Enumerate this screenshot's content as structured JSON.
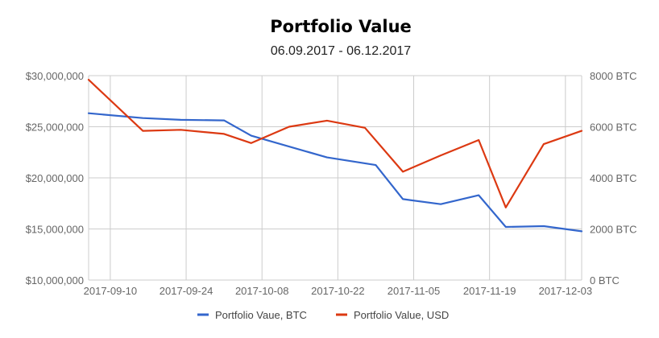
{
  "chart_data": {
    "type": "line",
    "title": "Portfolio Value",
    "subtitle": "06.09.2017 - 06.12.2017",
    "x_start": "2017-09-06",
    "x_end": "2017-12-06",
    "x_ticks": [
      "2017-09-10",
      "2017-09-24",
      "2017-10-08",
      "2017-10-22",
      "2017-11-05",
      "2017-11-19",
      "2017-12-03"
    ],
    "y_left": {
      "range": [
        10000000,
        30000000
      ],
      "ticks": [
        30000000,
        25000000,
        20000000,
        15000000,
        10000000
      ],
      "tick_labels": [
        "$30,000,000",
        "$25,000,000",
        "$20,000,000",
        "$15,000,000",
        "$10,000,000"
      ]
    },
    "y_right": {
      "range": [
        0,
        8000
      ],
      "ticks": [
        8000,
        6000,
        4000,
        2000,
        0
      ],
      "tick_labels": [
        "8000 BTC",
        "6000 BTC",
        "4000 BTC",
        "2000 BTC",
        "0 BTC"
      ]
    },
    "grid": true,
    "legend_position": "bottom",
    "series": [
      {
        "name": "Portfolio Vaue, BTC",
        "axis": "right",
        "color": "#3366cc",
        "points": [
          {
            "x": "2017-09-06",
            "y": 6530
          },
          {
            "x": "2017-09-16",
            "y": 6340
          },
          {
            "x": "2017-09-23",
            "y": 6270
          },
          {
            "x": "2017-10-01",
            "y": 6250
          },
          {
            "x": "2017-10-06",
            "y": 5650
          },
          {
            "x": "2017-10-20",
            "y": 4800
          },
          {
            "x": "2017-10-29",
            "y": 4500
          },
          {
            "x": "2017-11-03",
            "y": 3170
          },
          {
            "x": "2017-11-10",
            "y": 2970
          },
          {
            "x": "2017-11-17",
            "y": 3320
          },
          {
            "x": "2017-11-22",
            "y": 2080
          },
          {
            "x": "2017-11-29",
            "y": 2110
          },
          {
            "x": "2017-12-06",
            "y": 1910
          }
        ]
      },
      {
        "name": "Portfolio Value, USD",
        "axis": "left",
        "color": "#dc3912",
        "points": [
          {
            "x": "2017-09-06",
            "y": 29600000
          },
          {
            "x": "2017-09-16",
            "y": 24600000
          },
          {
            "x": "2017-09-23",
            "y": 24700000
          },
          {
            "x": "2017-10-01",
            "y": 24300000
          },
          {
            "x": "2017-10-06",
            "y": 23400000
          },
          {
            "x": "2017-10-13",
            "y": 25000000
          },
          {
            "x": "2017-10-20",
            "y": 25600000
          },
          {
            "x": "2017-10-27",
            "y": 24900000
          },
          {
            "x": "2017-11-03",
            "y": 20600000
          },
          {
            "x": "2017-11-10",
            "y": 22200000
          },
          {
            "x": "2017-11-17",
            "y": 23700000
          },
          {
            "x": "2017-11-22",
            "y": 17100000
          },
          {
            "x": "2017-11-29",
            "y": 23300000
          },
          {
            "x": "2017-12-06",
            "y": 24600000
          }
        ]
      }
    ]
  }
}
